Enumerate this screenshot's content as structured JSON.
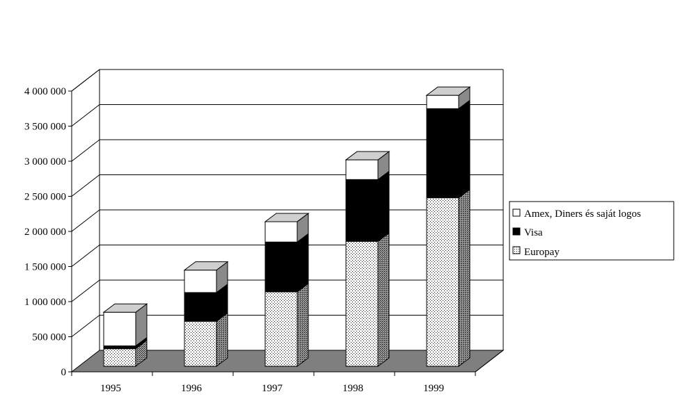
{
  "chart_data": {
    "type": "bar",
    "stacked": true,
    "three_d": true,
    "categories": [
      "1995",
      "1996",
      "1997",
      "1998",
      "1999"
    ],
    "series": [
      {
        "name": "Europay",
        "values": [
          250000,
          640000,
          1060000,
          1780000,
          2400000
        ],
        "pattern": "dots"
      },
      {
        "name": "Visa",
        "values": [
          40000,
          410000,
          710000,
          880000,
          1270000
        ],
        "pattern": "solid-black"
      },
      {
        "name": "Amex, Diners és saját logos",
        "values": [
          480000,
          320000,
          290000,
          280000,
          190000
        ],
        "pattern": "white"
      }
    ],
    "y_ticks": [
      "0",
      "500 000",
      "1 000 000",
      "1 500 000",
      "2 000 000",
      "2 500 000",
      "3 000 000",
      "3 500 000",
      "4 000 000"
    ],
    "ylim": [
      0,
      4000000
    ],
    "grid": true,
    "legend_position": "right",
    "title": "",
    "xlabel": "",
    "ylabel": ""
  },
  "legend": {
    "items": [
      "Amex, Diners és saját logos",
      "Visa",
      "Europay"
    ]
  }
}
